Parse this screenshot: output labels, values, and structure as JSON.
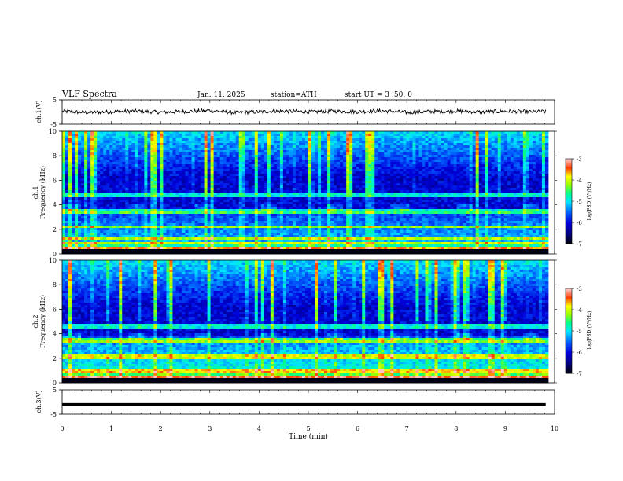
{
  "header": {
    "title": "VLF  Spectra",
    "date": "Jan. 11, 2025",
    "station": "station=ATH",
    "start": "start  UT  =   3  :50: 0"
  },
  "chart_data": [
    {
      "type": "line",
      "panel": "ch1-waveform",
      "ylabel": "ch.1(V)",
      "ylim": [
        -5,
        5
      ],
      "yticks": [
        5,
        -5
      ],
      "xlim": [
        0,
        10
      ],
      "series": [
        {
          "x": [
            0,
            0.5,
            1,
            1.5,
            2,
            2.5,
            3,
            3.5,
            4,
            4.5,
            5,
            5.5,
            6,
            6.5,
            7,
            7.5,
            8,
            8.5,
            9,
            9.5,
            9.82
          ],
          "y": [
            0.3,
            -0.2,
            0.1,
            0.4,
            -0.1,
            0.2,
            0.6,
            -0.3,
            0.1,
            0.4,
            0.0,
            0.3,
            0.1,
            0.5,
            -0.2,
            0.2,
            0.4,
            0.0,
            0.3,
            0.1,
            0.2
          ]
        }
      ],
      "color": "#000000"
    },
    {
      "type": "heatmap",
      "panel": "ch1-spectrogram",
      "ylabel": "ch.1\nFrequency (kHz)",
      "ylabel_line1": "ch.1",
      "ylabel_line2": "Frequency (kHz)",
      "ylim": [
        0,
        10
      ],
      "yticks": [
        0,
        2,
        4,
        6,
        8,
        10
      ],
      "xlim": [
        0,
        10
      ],
      "colorbar": {
        "label": "log(PSD)(V²/Hz)",
        "ticks": [
          -3,
          -4,
          -5,
          -6,
          -7
        ],
        "range": [
          -7,
          -3
        ]
      },
      "bands_khz": [
        0.4,
        0.9,
        1.3,
        2.2,
        3.5,
        4.8
      ]
    },
    {
      "type": "heatmap",
      "panel": "ch2-spectrogram",
      "ylabel": "ch.2\nFrequency (kHz)",
      "ylabel_line1": "ch.2",
      "ylabel_line2": "Frequency (kHz)",
      "ylim": [
        0,
        10
      ],
      "yticks": [
        0,
        2,
        4,
        6,
        8,
        10
      ],
      "xlim": [
        0,
        10
      ],
      "colorbar": {
        "label": "log(PSD)(V²/Hz)",
        "ticks": [
          -3,
          -4,
          -5,
          -6,
          -7
        ],
        "range": [
          -7,
          -3
        ]
      },
      "bands_khz": [
        0.4,
        1.0,
        2.0,
        2.2,
        3.5,
        4.6
      ]
    },
    {
      "type": "line",
      "panel": "ch3-waveform",
      "ylabel": "ch.3(V)",
      "ylim": [
        -5,
        5
      ],
      "yticks": [
        5,
        -5
      ],
      "xlim": [
        0,
        10
      ],
      "xlabel": "Time  (min)",
      "xticks": [
        0,
        1,
        2,
        3,
        4,
        5,
        6,
        7,
        8,
        9,
        10
      ],
      "series": [
        {
          "x": [
            0,
            9.82
          ],
          "y": [
            -1,
            -1
          ]
        }
      ],
      "color": "#000000"
    }
  ],
  "colorscale": [
    "#000000",
    "#00008b",
    "#0000ff",
    "#0080ff",
    "#00ffff",
    "#00ff80",
    "#80ff00",
    "#ffff00",
    "#ff8000",
    "#ff0000",
    "#ffc0c0",
    "#ffffff"
  ]
}
